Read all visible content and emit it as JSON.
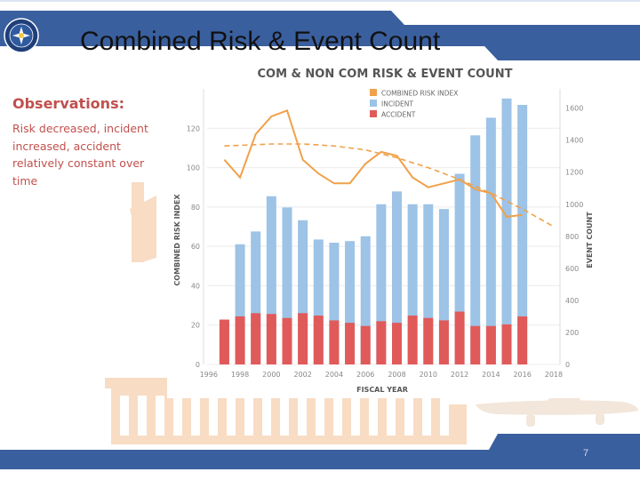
{
  "slide": {
    "title": "Combined Risk & Event Count",
    "page_number": "7",
    "observations_title": "Observations:",
    "observations_text": "Risk decreased, incident increased, accident relatively constant over time"
  },
  "theme": {
    "band_color": "#3a5f9e",
    "band_light": "#dbe4f1",
    "deco_color": "#f8dcc4"
  },
  "chart_data": {
    "type": "bar",
    "title": "COM & NON COM RISK & EVENT COUNT",
    "xlabel": "FISCAL YEAR",
    "ylabel_left": "COMBINED RISK INDEX",
    "ylabel_right": "EVENT COUNT",
    "x_ticks": [
      "1996",
      "1998",
      "2000",
      "2002",
      "2004",
      "2006",
      "2008",
      "2010",
      "2012",
      "2014",
      "2016",
      "2018"
    ],
    "left_ticks": [
      "0",
      "20",
      "40",
      "60",
      "80",
      "100",
      "120"
    ],
    "right_ticks": [
      "0",
      "200",
      "400",
      "600",
      "800",
      "1000",
      "1200",
      "1400",
      "1600"
    ],
    "left_lim": [
      0,
      140
    ],
    "right_lim": [
      0,
      1720
    ],
    "legend_position": "top",
    "series": [
      {
        "name": "COMBINED RISK INDEX",
        "color": "#f0a14a",
        "kind": "line",
        "axis": "left",
        "x": [
          1997,
          1998,
          1999,
          2000,
          2001,
          2002,
          2003,
          2004,
          2005,
          2006,
          2007,
          2008,
          2009,
          2010,
          2011,
          2012,
          2013,
          2014,
          2015,
          2016
        ],
        "values": [
          104,
          95,
          117,
          126,
          129,
          104,
          97,
          92,
          92,
          102,
          108,
          106,
          95,
          90,
          92,
          94,
          89,
          87,
          75,
          76
        ]
      },
      {
        "name": "INCIDENT",
        "color": "#9dc3e6",
        "kind": "bar",
        "axis": "right",
        "x": [
          1997,
          1998,
          1999,
          2000,
          2001,
          2002,
          2003,
          2004,
          2005,
          2006,
          2007,
          2008,
          2009,
          2010,
          2011,
          2012,
          2013,
          2014,
          2015,
          2016
        ],
        "values": [
          280,
          750,
          830,
          1050,
          980,
          900,
          780,
          760,
          770,
          800,
          1000,
          1080,
          1000,
          1000,
          970,
          1190,
          1430,
          1540,
          1660,
          1620
        ]
      },
      {
        "name": "ACCIDENT",
        "color": "#e05a5a",
        "kind": "bar",
        "axis": "right",
        "x": [
          1997,
          1998,
          1999,
          2000,
          2001,
          2002,
          2003,
          2004,
          2005,
          2006,
          2007,
          2008,
          2009,
          2010,
          2011,
          2012,
          2013,
          2014,
          2015,
          2016
        ],
        "values": [
          280,
          300,
          320,
          315,
          290,
          320,
          305,
          275,
          260,
          240,
          270,
          260,
          305,
          290,
          275,
          330,
          240,
          240,
          250,
          300
        ]
      }
    ],
    "trend_line": {
      "color": "#f0a14a",
      "style": "dashed",
      "x": [
        1997,
        2000,
        2002,
        2004,
        2006,
        2008,
        2010,
        2012,
        2014,
        2016,
        2018
      ],
      "values": [
        111,
        112,
        112,
        111,
        109,
        105,
        100,
        94,
        87,
        79,
        70
      ]
    }
  }
}
